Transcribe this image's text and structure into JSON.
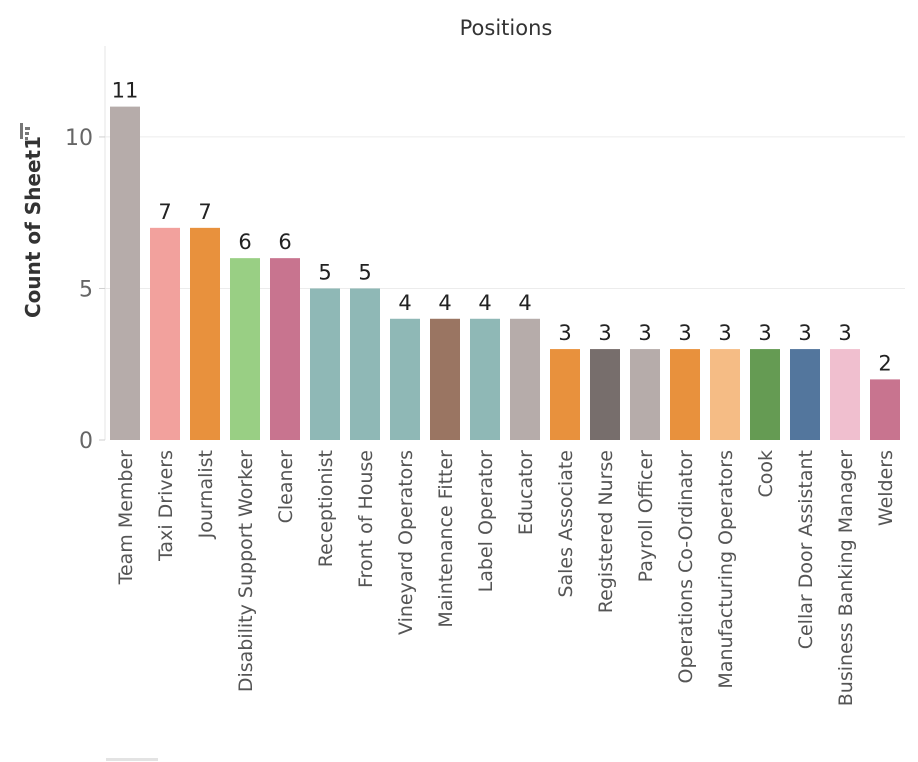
{
  "chart_data": {
    "type": "bar",
    "title": "Positions",
    "ylabel": "Count of Sheet1",
    "xlabel": "",
    "ylim": [
      0,
      13
    ],
    "yticks": [
      0,
      5,
      10
    ],
    "grid": true,
    "sort_icon": "sort-descending-icon",
    "categories": [
      "Team Member",
      "Taxi Drivers",
      "Journalist",
      "Disability Support Worker",
      "Cleaner",
      "Receptionist",
      "Front of House",
      "Vineyard Operators",
      "Maintenance Fitter",
      "Label Operator",
      "Educator",
      "Sales Associate",
      "Registered Nurse",
      "Payroll Officer",
      "Operations Co-Ordinator",
      "Manufacturing Operators",
      "Cook",
      "Cellar Door Assistant",
      "Business Banking Manager",
      "Welders"
    ],
    "values": [
      11,
      7,
      7,
      6,
      6,
      5,
      5,
      4,
      4,
      4,
      4,
      3,
      3,
      3,
      3,
      3,
      3,
      3,
      3,
      2
    ],
    "colors": [
      "#b6acaa",
      "#f2a19d",
      "#e8913d",
      "#99cf84",
      "#c8748f",
      "#8fb8b6",
      "#8fb8b6",
      "#8fb8b6",
      "#9a7562",
      "#8fb8b6",
      "#b6acaa",
      "#e8913d",
      "#776e6c",
      "#b6acaa",
      "#e8913d",
      "#f5bc85",
      "#659b53",
      "#53769d",
      "#f0bfcf",
      "#c8748f"
    ]
  }
}
